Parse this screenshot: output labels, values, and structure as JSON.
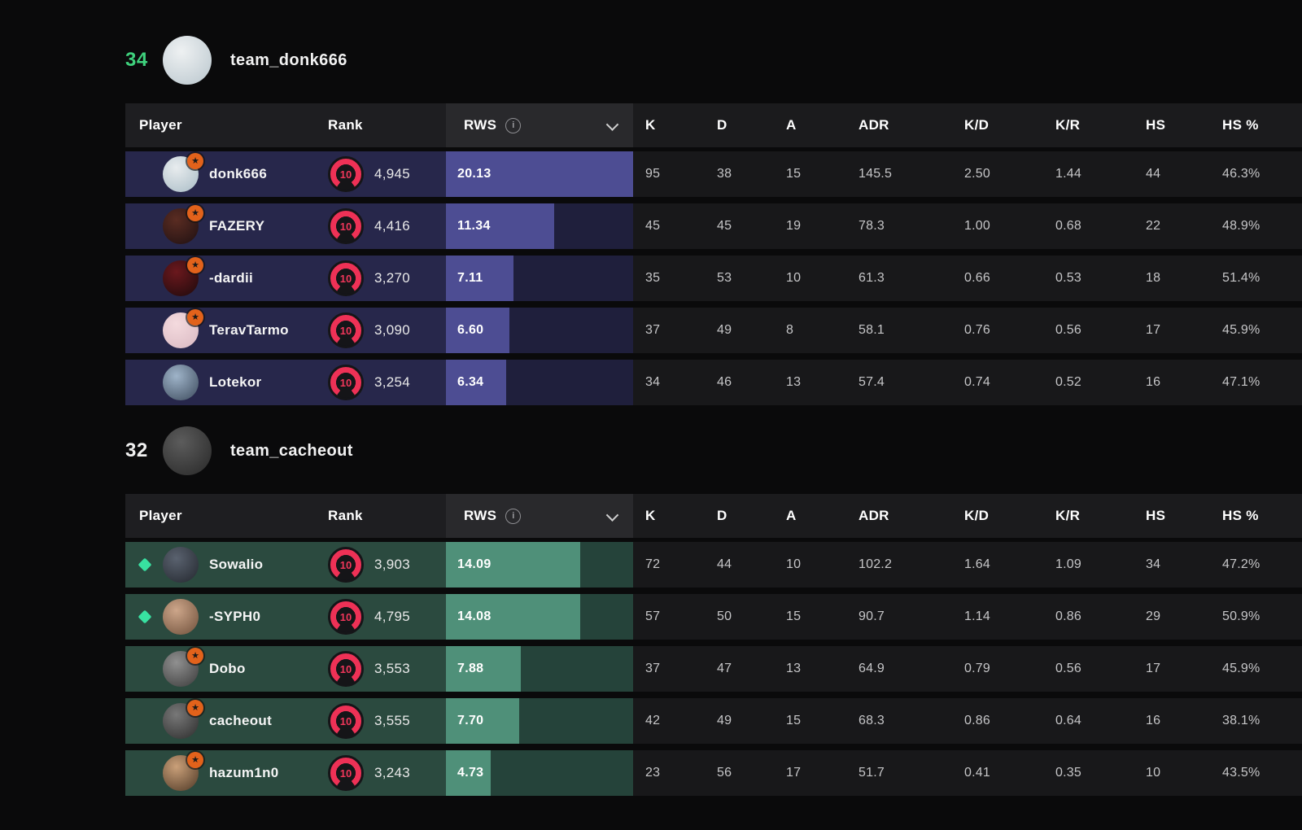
{
  "columns": {
    "player": "Player",
    "rank": "Rank",
    "rws": "RWS",
    "stats": [
      "K",
      "D",
      "A",
      "ADR",
      "K/D",
      "K/R",
      "HS",
      "HS %"
    ]
  },
  "rws_scale_max": 19.6,
  "icons": {
    "info": "i",
    "star": "★"
  },
  "colors": {
    "rank_ring": "#ee3156",
    "rank_text": "#f0365a",
    "rank_bg": "#151518",
    "star_bg": "#e2621b",
    "star_glyph": "#1a1a1a",
    "diamond": "#38e1a1"
  },
  "teams": [
    {
      "score": "34",
      "score_color": "#3fd17d",
      "name": "team_donk666",
      "avatar_colors": [
        "#eef1f2",
        "#b9c6cd"
      ],
      "theme": {
        "row_bg": "#27274b",
        "bar": "#4d4d93",
        "track": "#1f1f3c"
      },
      "players": [
        {
          "name": "donk666",
          "star": true,
          "diamond": false,
          "rank": "10",
          "elo": "4,945",
          "rws": "20.13",
          "rws_value": 20.13,
          "avatar_colors": [
            "#e8ecee",
            "#a9bcc6"
          ],
          "stats": [
            "95",
            "38",
            "15",
            "145.5",
            "2.50",
            "1.44",
            "44",
            "46.3%"
          ]
        },
        {
          "name": "FAZERY",
          "star": true,
          "diamond": false,
          "rank": "10",
          "elo": "4,416",
          "rws": "11.34",
          "rws_value": 11.34,
          "avatar_colors": [
            "#5a2c22",
            "#1e1012"
          ],
          "stats": [
            "45",
            "45",
            "19",
            "78.3",
            "1.00",
            "0.68",
            "22",
            "48.9%"
          ]
        },
        {
          "name": "-dardii",
          "star": true,
          "diamond": false,
          "rank": "10",
          "elo": "3,270",
          "rws": "7.11",
          "rws_value": 7.11,
          "avatar_colors": [
            "#6b181d",
            "#1c0a0c"
          ],
          "stats": [
            "35",
            "53",
            "10",
            "61.3",
            "0.66",
            "0.53",
            "18",
            "51.4%"
          ]
        },
        {
          "name": "TeravTarmo",
          "star": true,
          "diamond": false,
          "rank": "10",
          "elo": "3,090",
          "rws": "6.60",
          "rws_value": 6.6,
          "avatar_colors": [
            "#f4dade",
            "#d9b9c2"
          ],
          "stats": [
            "37",
            "49",
            "8",
            "58.1",
            "0.76",
            "0.56",
            "17",
            "45.9%"
          ]
        },
        {
          "name": "Lotekor",
          "star": false,
          "diamond": false,
          "rank": "10",
          "elo": "3,254",
          "rws": "6.34",
          "rws_value": 6.34,
          "avatar_colors": [
            "#9fb4c9",
            "#3c4a5c"
          ],
          "stats": [
            "34",
            "46",
            "13",
            "57.4",
            "0.74",
            "0.52",
            "16",
            "47.1%"
          ]
        }
      ]
    },
    {
      "score": "32",
      "score_color": "#f0f0f0",
      "name": "team_cacheout",
      "avatar_colors": [
        "#5c5c5c",
        "#272727"
      ],
      "theme": {
        "row_bg": "#2b4a3f",
        "bar": "#4f9079",
        "track": "#25433a"
      },
      "players": [
        {
          "name": "Sowalio",
          "star": false,
          "diamond": true,
          "rank": "10",
          "elo": "3,903",
          "rws": "14.09",
          "rws_value": 14.09,
          "avatar_colors": [
            "#5a626f",
            "#23272e"
          ],
          "stats": [
            "72",
            "44",
            "10",
            "102.2",
            "1.64",
            "1.09",
            "34",
            "47.2%"
          ]
        },
        {
          "name": "-SYPH0",
          "star": false,
          "diamond": true,
          "rank": "10",
          "elo": "4,795",
          "rws": "14.08",
          "rws_value": 14.08,
          "avatar_colors": [
            "#cda68a",
            "#6e4f3a"
          ],
          "stats": [
            "57",
            "50",
            "15",
            "90.7",
            "1.14",
            "0.86",
            "29",
            "50.9%"
          ]
        },
        {
          "name": "Dobo",
          "star": true,
          "diamond": false,
          "rank": "10",
          "elo": "3,553",
          "rws": "7.88",
          "rws_value": 7.88,
          "avatar_colors": [
            "#909090",
            "#3a3a3a"
          ],
          "stats": [
            "37",
            "47",
            "13",
            "64.9",
            "0.79",
            "0.56",
            "17",
            "45.9%"
          ]
        },
        {
          "name": "cacheout",
          "star": true,
          "diamond": false,
          "rank": "10",
          "elo": "3,555",
          "rws": "7.70",
          "rws_value": 7.7,
          "avatar_colors": [
            "#787878",
            "#2c2c2c"
          ],
          "stats": [
            "42",
            "49",
            "15",
            "68.3",
            "0.86",
            "0.64",
            "16",
            "38.1%"
          ]
        },
        {
          "name": "hazum1n0",
          "star": true,
          "diamond": false,
          "rank": "10",
          "elo": "3,243",
          "rws": "4.73",
          "rws_value": 4.73,
          "avatar_colors": [
            "#caa079",
            "#4e3826"
          ],
          "stats": [
            "23",
            "56",
            "17",
            "51.7",
            "0.41",
            "0.35",
            "10",
            "43.5%"
          ]
        }
      ]
    }
  ]
}
